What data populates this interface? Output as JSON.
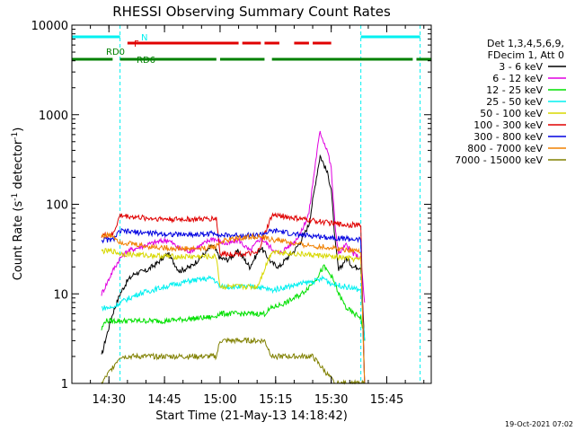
{
  "chart_data": {
    "type": "line",
    "title": "RHESSI Observing Summary Count Rates",
    "xlabel": "Start Time (21-May-13 14:18:42)",
    "ylabel_main": "Count Rate (s",
    "ylabel_sup1": "-1",
    "ylabel_mid": " detector",
    "ylabel_sup2": "-1",
    "ylabel_end": ")",
    "timestamp": "19-Oct-2021 07:02",
    "x_range": [
      "14:20",
      "15:57"
    ],
    "ylim": [
      1,
      10000
    ],
    "yscale": "log",
    "x_ticks": [
      "14:30",
      "14:45",
      "15:00",
      "15:15",
      "15:30",
      "15:45"
    ],
    "y_ticks": [
      {
        "value": 1,
        "label": "1"
      },
      {
        "value": 10,
        "label": "10"
      },
      {
        "value": 100,
        "label": "100"
      },
      {
        "value": 1000,
        "label": "1000"
      },
      {
        "value": 10000,
        "label": "10000"
      }
    ],
    "legend": {
      "placement": "right",
      "header": [
        "Det 1,3,4,5,6,9,",
        "FDecim 1, Att 0"
      ],
      "entries": [
        {
          "label": "3 - 6 keV",
          "color": "#000000"
        },
        {
          "label": "6 - 12 keV",
          "color": "#e000e0"
        },
        {
          "label": "12 - 25 keV",
          "color": "#00e000"
        },
        {
          "label": "25 - 50 keV",
          "color": "#00f0f0"
        },
        {
          "label": "50 - 100 keV",
          "color": "#d8d800"
        },
        {
          "label": "100 - 300 keV",
          "color": "#e00000"
        },
        {
          "label": "300 - 800 keV",
          "color": "#0000e0"
        },
        {
          "label": "800 - 7000 keV",
          "color": "#f08000"
        },
        {
          "label": "7000 - 15000 keV",
          "color": "#808000"
        }
      ]
    },
    "flags": [
      {
        "label": "N",
        "color": "#00f0f0",
        "segments": [
          [
            "14:20",
            "14:33"
          ],
          [
            "15:38",
            "15:54"
          ]
        ]
      },
      {
        "label": "F",
        "color": "#e00000",
        "segments": [
          [
            "14:35",
            "15:05"
          ],
          [
            "15:06",
            "15:11"
          ],
          [
            "15:12",
            "15:16"
          ],
          [
            "15:20",
            "15:24"
          ],
          [
            "15:25",
            "15:30"
          ]
        ]
      },
      {
        "label": "RD0",
        "color": "#008000",
        "segments": [
          [
            "14:20",
            "14:31"
          ]
        ]
      },
      {
        "label": "RD6",
        "color": "#008000",
        "segments": [
          [
            "14:33",
            "14:59"
          ],
          [
            "15:00",
            "15:12"
          ],
          [
            "15:14",
            "15:52"
          ],
          [
            "15:53",
            "15:57"
          ]
        ]
      }
    ],
    "vlines": [
      {
        "x": "14:20",
        "style": "solid",
        "color": "#00f0f0"
      },
      {
        "x": "14:33",
        "style": "dashed",
        "color": "#00f0f0"
      },
      {
        "x": "15:38",
        "style": "dashed",
        "color": "#00f0f0"
      },
      {
        "x": "15:54",
        "style": "dashed",
        "color": "#00f0f0"
      }
    ],
    "data_gaps": [
      [
        "14:20",
        "14:27"
      ],
      [
        "15:39",
        "15:57"
      ]
    ],
    "series": [
      {
        "name": "3 - 6 keV",
        "color": "#000000",
        "x": [
          "14:28",
          "14:29",
          "14:31",
          "14:33",
          "14:35",
          "14:37",
          "14:40",
          "14:43",
          "14:46",
          "14:49",
          "14:52",
          "14:55",
          "14:58",
          "15:00",
          "15:02",
          "15:05",
          "15:08",
          "15:11",
          "15:14",
          "15:16",
          "15:18",
          "15:20",
          "15:22",
          "15:24",
          "15:26",
          "15:27",
          "15:28",
          "15:29",
          "15:30",
          "15:31",
          "15:32",
          "15:34",
          "15:36",
          "15:38",
          "15:39"
        ],
        "values": [
          2,
          3,
          6,
          10,
          14,
          17,
          18,
          22,
          28,
          18,
          20,
          26,
          35,
          25,
          24,
          30,
          20,
          33,
          22,
          20,
          25,
          30,
          40,
          60,
          200,
          350,
          280,
          220,
          150,
          40,
          18,
          25,
          20,
          20,
          3
        ]
      },
      {
        "name": "6 - 12 keV",
        "color": "#e000e0",
        "x": [
          "14:28",
          "14:29",
          "14:31",
          "14:33",
          "14:35",
          "14:37",
          "14:40",
          "14:43",
          "14:46",
          "14:49",
          "14:52",
          "14:55",
          "14:58",
          "15:00",
          "15:02",
          "15:05",
          "15:08",
          "15:11",
          "15:14",
          "15:16",
          "15:18",
          "15:20",
          "15:22",
          "15:24",
          "15:26",
          "15:27",
          "15:28",
          "15:29",
          "15:30",
          "15:31",
          "15:32",
          "15:34",
          "15:36",
          "15:38",
          "15:39"
        ],
        "values": [
          10,
          12,
          18,
          25,
          30,
          32,
          35,
          38,
          40,
          32,
          30,
          35,
          42,
          38,
          36,
          40,
          30,
          42,
          32,
          28,
          33,
          38,
          50,
          80,
          350,
          650,
          500,
          400,
          250,
          60,
          28,
          35,
          28,
          25,
          8
        ]
      },
      {
        "name": "12 - 25 keV",
        "color": "#00e000",
        "x": [
          "14:28",
          "14:29",
          "14:31",
          "14:33",
          "14:45",
          "14:58",
          "15:00",
          "15:12",
          "15:14",
          "15:18",
          "15:22",
          "15:24",
          "15:26",
          "15:28",
          "15:30",
          "15:32",
          "15:34",
          "15:36",
          "15:38",
          "15:39"
        ],
        "values": [
          4,
          5,
          5,
          5,
          5,
          5.5,
          6,
          6,
          7,
          8,
          10,
          12,
          15,
          20,
          16,
          10,
          7,
          6,
          5.5,
          3
        ]
      },
      {
        "name": "25 - 50 keV",
        "color": "#00f0f0",
        "x": [
          "14:28",
          "14:31",
          "14:33",
          "14:38",
          "14:45",
          "14:52",
          "14:58",
          "15:00",
          "15:05",
          "15:10",
          "15:14",
          "15:18",
          "15:22",
          "15:26",
          "15:28",
          "15:30",
          "15:34",
          "15:38",
          "15:39"
        ],
        "values": [
          7,
          7,
          8,
          10,
          12,
          14,
          15,
          12,
          12,
          12,
          11,
          12,
          13,
          14,
          15,
          13,
          12,
          11,
          3
        ]
      },
      {
        "name": "50 - 100 keV",
        "color": "#d8d800",
        "x": [
          "14:28",
          "14:31",
          "14:33",
          "14:40",
          "14:48",
          "14:55",
          "14:59",
          "15:00",
          "15:10",
          "15:14",
          "15:20",
          "15:26",
          "15:30",
          "15:38",
          "15:39"
        ],
        "values": [
          30,
          30,
          28,
          27,
          26,
          26,
          26,
          12,
          12,
          30,
          28,
          27,
          26,
          24,
          1
        ]
      },
      {
        "name": "100 - 300 keV",
        "color": "#e00000",
        "x": [
          "14:28",
          "14:31",
          "14:33",
          "14:40",
          "14:48",
          "14:55",
          "14:59",
          "15:00",
          "15:10",
          "15:14",
          "15:16",
          "15:20",
          "15:26",
          "15:32",
          "15:38",
          "15:39"
        ],
        "values": [
          45,
          45,
          75,
          70,
          68,
          68,
          70,
          28,
          28,
          75,
          75,
          70,
          65,
          60,
          58,
          1
        ]
      },
      {
        "name": "300 - 800 keV",
        "color": "#0000e0",
        "x": [
          "14:28",
          "14:31",
          "14:33",
          "14:40",
          "14:48",
          "14:55",
          "14:59",
          "15:00",
          "15:10",
          "15:14",
          "15:16",
          "15:20",
          "15:26",
          "15:32",
          "15:38",
          "15:39"
        ],
        "values": [
          40,
          40,
          50,
          48,
          46,
          46,
          48,
          45,
          45,
          50,
          50,
          46,
          44,
          42,
          40,
          1
        ]
      },
      {
        "name": "800 - 7000 keV",
        "color": "#f08000",
        "x": [
          "14:28",
          "14:31",
          "14:33",
          "14:40",
          "14:48",
          "14:55",
          "14:59",
          "15:00",
          "15:05",
          "15:10",
          "15:14",
          "15:16",
          "15:20",
          "15:26",
          "15:32",
          "15:38",
          "15:39"
        ],
        "values": [
          45,
          45,
          38,
          34,
          32,
          32,
          34,
          38,
          42,
          44,
          40,
          40,
          36,
          34,
          32,
          30,
          1
        ]
      },
      {
        "name": "7000 - 15000 keV",
        "color": "#808000",
        "x": [
          "14:28",
          "14:33",
          "14:45",
          "14:59",
          "15:00",
          "15:12",
          "15:14",
          "15:25",
          "15:31",
          "15:38",
          "15:39"
        ],
        "values": [
          1,
          2,
          2,
          2,
          3,
          3,
          2,
          2,
          1,
          1,
          1
        ]
      }
    ]
  }
}
